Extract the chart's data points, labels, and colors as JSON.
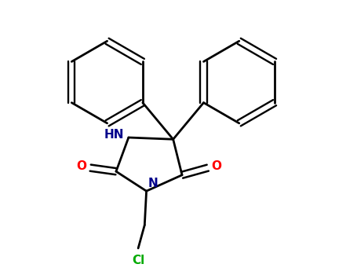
{
  "background_color": "#ffffff",
  "bond_color": "#000000",
  "atom_colors": {
    "N": "#00008b",
    "O": "#ff0000",
    "Cl": "#00aa00",
    "C": "#000000"
  },
  "figsize": [
    4.55,
    3.5
  ],
  "dpi": 100,
  "xlim": [
    0,
    10
  ],
  "ylim": [
    0,
    7.7
  ],
  "lw": 2.0,
  "font_size": 11
}
